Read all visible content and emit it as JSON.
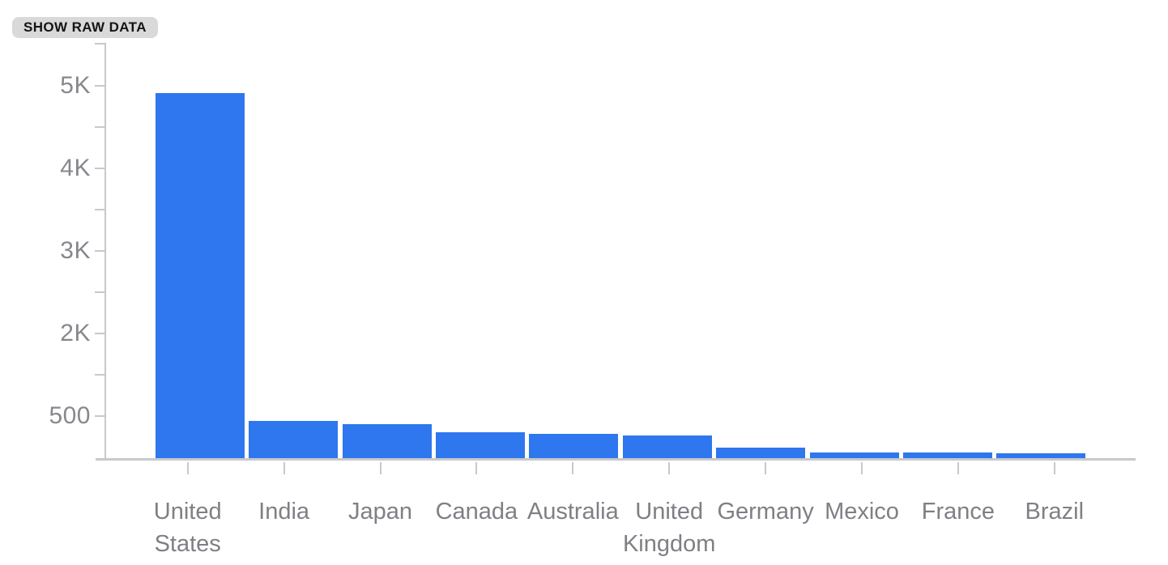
{
  "button": {
    "label": "SHOW RAW DATA"
  },
  "colors": {
    "bar": "#2e77ee",
    "axis": "#c9c9cc",
    "y_label_text": "#87878d",
    "x_label_text": "#7f7f85",
    "button_bg": "#d9d9d9",
    "button_text": "#141414"
  },
  "chart_data": {
    "type": "bar",
    "title": "",
    "xlabel": "",
    "ylabel": "",
    "legend": "none",
    "grid": false,
    "bar_color": "#2e77ee",
    "categories": [
      "United States",
      "India",
      "Japan",
      "Canada",
      "Australia",
      "United Kingdom",
      "Germany",
      "Mexico",
      "France",
      "Brazil"
    ],
    "values": [
      4910,
      940,
      900,
      805,
      785,
      765,
      620,
      560,
      555,
      550
    ],
    "y_tick_labels_top_to_bottom": [
      "5K",
      "4K",
      "3K",
      "2K",
      "500"
    ],
    "y_axis_side": "left",
    "y_minor_ticks_between_majors": true
  }
}
